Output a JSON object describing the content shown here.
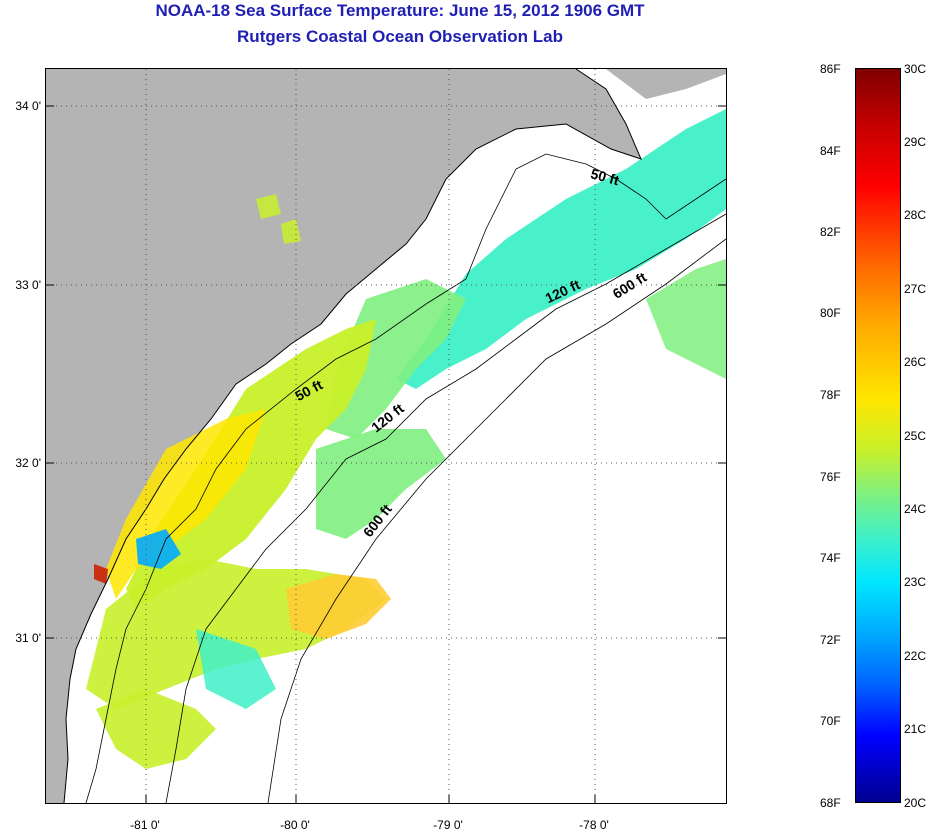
{
  "header": {
    "title": "NOAA-18 Sea Surface Temperature:  June 15, 2012 1906 GMT",
    "subtitle": "Rutgers Coastal Ocean Observation Lab"
  },
  "map": {
    "lat_labels": [
      "34 0'",
      "33 0'",
      "32 0'",
      "31 0'"
    ],
    "lon_labels": [
      "-81 0'",
      "-80 0'",
      "-79 0'",
      "-78 0'"
    ],
    "contour_labels": [
      "50 ft",
      "120 ft",
      "600 ft",
      "50 ft",
      "120 ft",
      "600 ft"
    ],
    "colors": {
      "land": "#b4b4b4",
      "gridline": "#555555",
      "coastline": "#000000"
    },
    "grid": "dotted"
  },
  "colorbar": {
    "fahrenheit": [
      "86F",
      "84F",
      "82F",
      "80F",
      "78F",
      "76F",
      "74F",
      "72F",
      "70F",
      "68F"
    ],
    "celsius": [
      "30C",
      "29C",
      "28C",
      "27C",
      "26C",
      "25C",
      "24C",
      "23C",
      "22C",
      "21C",
      "20C"
    ]
  }
}
